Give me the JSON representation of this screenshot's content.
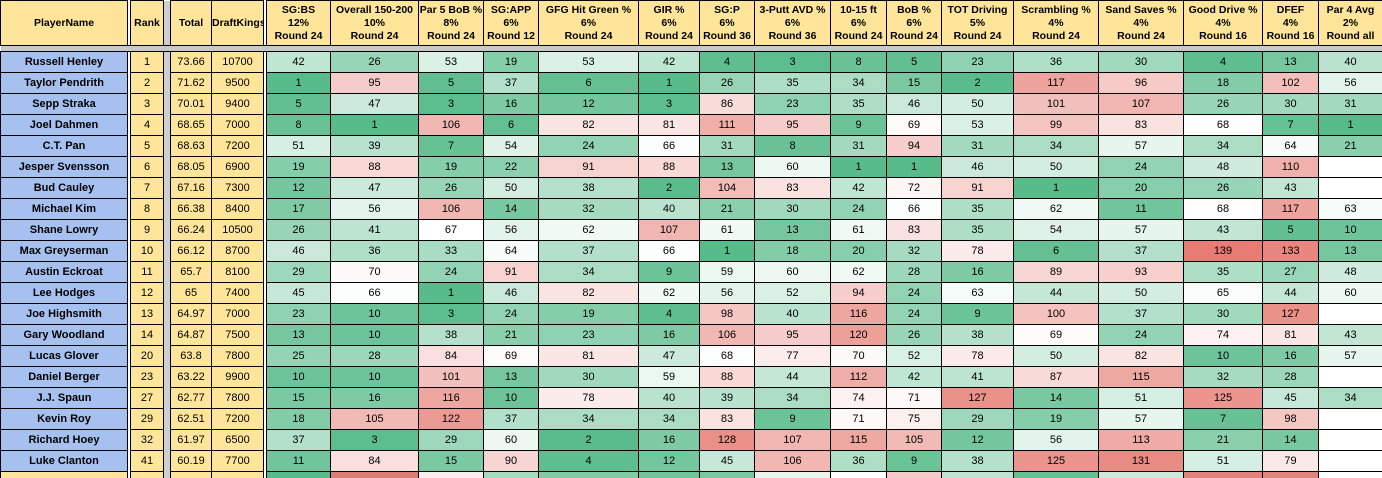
{
  "app": {
    "description": "Golf DFS stat-rank spreadsheet"
  },
  "colors": {
    "header_bg": "#FFE599",
    "name_bg": "#A6C1F0",
    "yellow_bg": "#FFE599",
    "spacer_gray": "#CFCFCF",
    "band_gray": "#C9C9C9",
    "gap_white": "#FFFFFF",
    "grid": "#000000",
    "scale_green": "#57BB8A",
    "scale_white": "#FFFFFF",
    "scale_red": "#E67C73",
    "scale_domain": [
      1,
      67,
      139
    ]
  },
  "table": {
    "static_columns": [
      {
        "id": "player",
        "label": "PlayerName",
        "width": 127,
        "kind": "name"
      },
      {
        "id": "gap1",
        "label": "",
        "width": 3,
        "kind": "gap"
      },
      {
        "id": "rank",
        "label": "Rank",
        "width": 33,
        "kind": "yellow"
      },
      {
        "id": "spacer",
        "label": "",
        "width": 7,
        "kind": "spacer"
      },
      {
        "id": "total",
        "label": "Total",
        "width": 41,
        "kind": "yellow"
      },
      {
        "id": "draftkings",
        "label": "DraftKings",
        "width": 52,
        "kind": "yellow"
      },
      {
        "id": "gap2",
        "label": "",
        "width": 3,
        "kind": "gap"
      }
    ],
    "stat_columns": [
      {
        "id": "sgbs",
        "label": "SG:BS",
        "weight": "12%",
        "round": "Round 24",
        "width": 64
      },
      {
        "id": "overall",
        "label": "Overall 150-200",
        "weight": "10%",
        "round": "Round 24",
        "width": 88
      },
      {
        "id": "par5bob",
        "label": "Par 5 BoB %",
        "weight": "8%",
        "round": "Round 24",
        "width": 65
      },
      {
        "id": "sgapp",
        "label": "SG:APP",
        "weight": "6%",
        "round": "Round 12",
        "width": 55
      },
      {
        "id": "gfg",
        "label": "GFG Hit Green %",
        "weight": "6%",
        "round": "Round 24",
        "width": 100
      },
      {
        "id": "gir",
        "label": "GIR %",
        "weight": "6%",
        "round": "Round 24",
        "width": 61
      },
      {
        "id": "sgp",
        "label": "SG:P",
        "weight": "6%",
        "round": "Round 36",
        "width": 55
      },
      {
        "id": "putt3",
        "label": "3-Putt AVD %",
        "weight": "6%",
        "round": "Round 36",
        "width": 76
      },
      {
        "id": "ft1015",
        "label": "10-15 ft",
        "weight": "6%",
        "round": "Round 24",
        "width": 56
      },
      {
        "id": "bob",
        "label": "BoB %",
        "weight": "6%",
        "round": "Round 24",
        "width": 55
      },
      {
        "id": "totdrive",
        "label": "TOT Driving",
        "weight": "5%",
        "round": "Round 24",
        "width": 72
      },
      {
        "id": "scramble",
        "label": "Scrambling %",
        "weight": "4%",
        "round": "Round 24",
        "width": 85
      },
      {
        "id": "sandsave",
        "label": "Sand Saves %",
        "weight": "4%",
        "round": "Round 24",
        "width": 85
      },
      {
        "id": "gooddrive",
        "label": "Good Drive %",
        "weight": "4%",
        "round": "Round 16",
        "width": 79
      },
      {
        "id": "dfef",
        "label": "DFEF",
        "weight": "4%",
        "round": "Round 16",
        "width": 56
      },
      {
        "id": "par4",
        "label": "Par 4 Avg",
        "weight": "2%",
        "round": "Round all",
        "width": 64
      }
    ],
    "players": [
      {
        "name": "Russell Henley",
        "rank": "1",
        "total": "73.66",
        "draftkings": "10700",
        "stats": [
          42,
          26,
          53,
          19,
          53,
          42,
          4,
          3,
          8,
          5,
          23,
          36,
          30,
          4,
          13,
          40
        ]
      },
      {
        "name": "Taylor Pendrith",
        "rank": "2",
        "total": "71.62",
        "draftkings": "9500",
        "stats": [
          1,
          95,
          5,
          37,
          6,
          1,
          26,
          35,
          34,
          15,
          2,
          117,
          96,
          18,
          102,
          56
        ]
      },
      {
        "name": "Sepp Straka",
        "rank": "3",
        "total": "70.01",
        "draftkings": "9400",
        "stats": [
          5,
          47,
          3,
          16,
          12,
          3,
          86,
          23,
          35,
          46,
          50,
          101,
          107,
          26,
          30,
          31
        ]
      },
      {
        "name": "Joel Dahmen",
        "rank": "4",
        "total": "68.65",
        "draftkings": "7000",
        "stats": [
          8,
          1,
          106,
          6,
          82,
          81,
          111,
          95,
          9,
          69,
          53,
          99,
          83,
          68,
          7,
          1
        ]
      },
      {
        "name": "C.T. Pan",
        "rank": "5",
        "total": "68.63",
        "draftkings": "7200",
        "stats": [
          51,
          39,
          7,
          54,
          24,
          66,
          31,
          8,
          31,
          94,
          31,
          34,
          57,
          34,
          64,
          21
        ]
      },
      {
        "name": "Jesper Svensson",
        "rank": "6",
        "total": "68.05",
        "draftkings": "6900",
        "stats": [
          19,
          88,
          19,
          22,
          91,
          88,
          13,
          60,
          1,
          1,
          46,
          50,
          24,
          48,
          110,
          null
        ]
      },
      {
        "name": "Bud Cauley",
        "rank": "7",
        "total": "67.16",
        "draftkings": "7300",
        "stats": [
          12,
          47,
          26,
          50,
          38,
          2,
          104,
          83,
          42,
          72,
          91,
          1,
          20,
          26,
          43,
          null
        ]
      },
      {
        "name": "Michael Kim",
        "rank": "8",
        "total": "66.38",
        "draftkings": "8400",
        "stats": [
          17,
          56,
          106,
          14,
          32,
          40,
          21,
          30,
          24,
          66,
          35,
          62,
          11,
          68,
          117,
          63
        ]
      },
      {
        "name": "Shane Lowry",
        "rank": "9",
        "total": "66.24",
        "draftkings": "10500",
        "stats": [
          26,
          41,
          67,
          56,
          62,
          107,
          61,
          13,
          61,
          83,
          35,
          54,
          57,
          43,
          5,
          10
        ]
      },
      {
        "name": "Max Greyserman",
        "rank": "10",
        "total": "66.12",
        "draftkings": "8700",
        "stats": [
          46,
          36,
          33,
          64,
          37,
          66,
          1,
          18,
          20,
          32,
          78,
          6,
          37,
          139,
          133,
          13
        ]
      },
      {
        "name": "Austin Eckroat",
        "rank": "11",
        "total": "65.7",
        "draftkings": "8100",
        "stats": [
          29,
          70,
          24,
          91,
          34,
          9,
          59,
          60,
          62,
          28,
          16,
          89,
          93,
          35,
          27,
          48
        ]
      },
      {
        "name": "Lee Hodges",
        "rank": "12",
        "total": "65",
        "draftkings": "7400",
        "stats": [
          45,
          66,
          1,
          46,
          82,
          62,
          56,
          52,
          94,
          24,
          63,
          44,
          50,
          65,
          44,
          60
        ]
      },
      {
        "name": "Joe Highsmith",
        "rank": "13",
        "total": "64.97",
        "draftkings": "7000",
        "stats": [
          23,
          10,
          3,
          24,
          19,
          4,
          98,
          40,
          116,
          24,
          9,
          100,
          37,
          30,
          127,
          null
        ]
      },
      {
        "name": "Gary Woodland",
        "rank": "14",
        "total": "64.87",
        "draftkings": "7500",
        "stats": [
          13,
          10,
          38,
          21,
          23,
          16,
          106,
          95,
          120,
          26,
          38,
          69,
          24,
          74,
          81,
          43
        ]
      },
      {
        "name": "Lucas Glover",
        "rank": "20",
        "total": "63.8",
        "draftkings": "7800",
        "stats": [
          25,
          28,
          84,
          69,
          81,
          47,
          68,
          77,
          70,
          52,
          78,
          50,
          82,
          10,
          16,
          57
        ]
      },
      {
        "name": "Daniel Berger",
        "rank": "23",
        "total": "63.22",
        "draftkings": "9900",
        "stats": [
          10,
          10,
          101,
          13,
          30,
          59,
          88,
          44,
          112,
          42,
          41,
          87,
          115,
          32,
          28,
          null
        ]
      },
      {
        "name": "J.J. Spaun",
        "rank": "27",
        "total": "62.77",
        "draftkings": "7800",
        "stats": [
          15,
          16,
          116,
          10,
          78,
          40,
          39,
          34,
          74,
          71,
          127,
          14,
          51,
          125,
          45,
          34
        ]
      },
      {
        "name": "Kevin Roy",
        "rank": "29",
        "total": "62.51",
        "draftkings": "7200",
        "stats": [
          18,
          105,
          122,
          37,
          34,
          34,
          83,
          9,
          71,
          75,
          29,
          19,
          57,
          7,
          98,
          null
        ]
      },
      {
        "name": "Richard Hoey",
        "rank": "32",
        "total": "61.97",
        "draftkings": "6500",
        "stats": [
          37,
          3,
          29,
          60,
          2,
          16,
          128,
          107,
          115,
          105,
          12,
          56,
          113,
          21,
          14,
          null
        ]
      },
      {
        "name": "Luke Clanton",
        "rank": "41",
        "total": "60.19",
        "draftkings": "7700",
        "stats": [
          11,
          84,
          15,
          90,
          4,
          12,
          45,
          106,
          36,
          9,
          38,
          125,
          131,
          51,
          79,
          null
        ]
      }
    ],
    "partial_row_stat_colors": [
      "#57BB8A",
      "#DD7E76",
      "#F9EDEF",
      "#A5DAC1",
      "#7ECBA6",
      "#6FC69C",
      "#79C9A3",
      "#E9F5EF",
      "#FDFEFD",
      "#F4CBC7",
      "#BFE5D2",
      "#63C193",
      "#CBEADA",
      "#E2837B",
      "#E0857D",
      "#FFFFFF"
    ]
  }
}
